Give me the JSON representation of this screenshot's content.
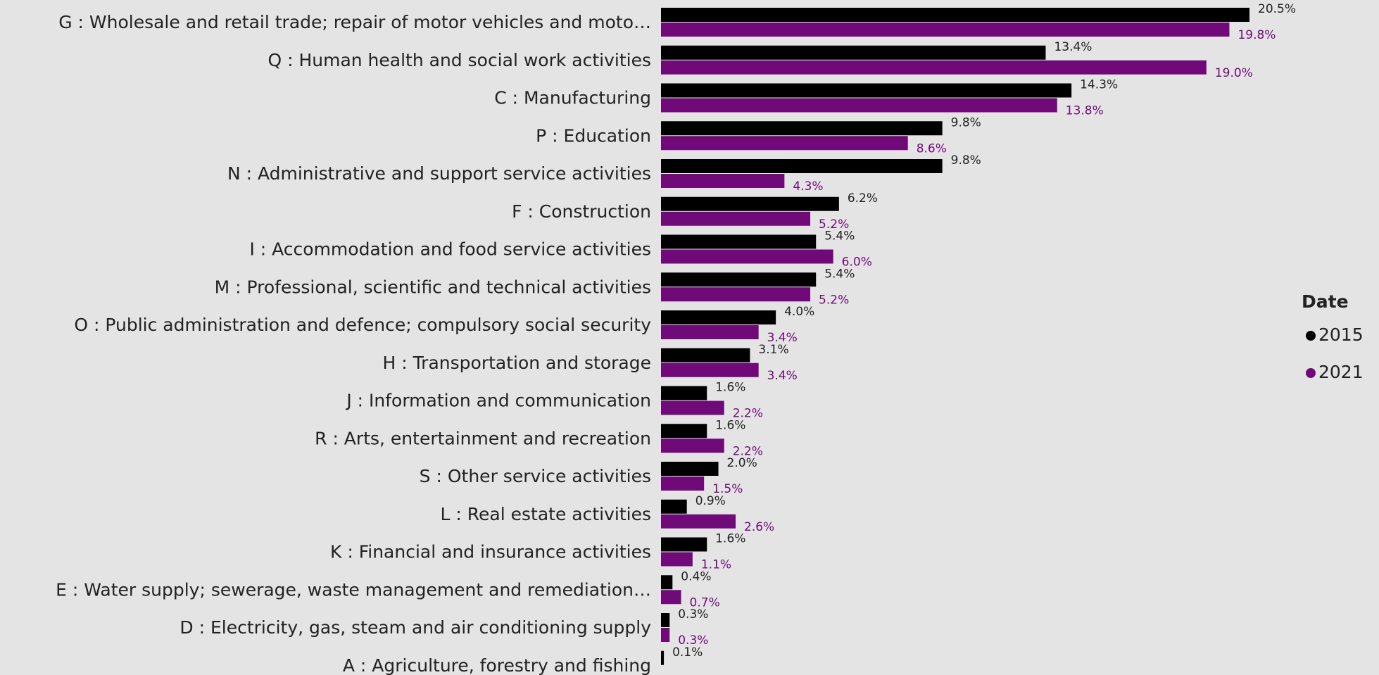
{
  "chart_data": {
    "type": "hbar",
    "categories": [
      "G : Wholesale and retail trade; repair of motor vehicles and moto…",
      "Q : Human health and social work activities",
      "C : Manufacturing",
      "P : Education",
      "N : Administrative and support service activities",
      "F : Construction",
      "I : Accommodation and food service activities",
      "M : Professional, scientific and technical activities",
      "O : Public administration and defence; compulsory social security",
      "H : Transportation and storage",
      "J : Information and communication",
      "R : Arts, entertainment and recreation",
      "S : Other service activities",
      "L : Real estate activities",
      "K : Financial and insurance activities",
      "E : Water supply; sewerage, waste management and remediation…",
      "D : Electricity, gas, steam and air conditioning supply",
      "A : Agriculture, forestry and fishing"
    ],
    "legend_title": "Date",
    "series": [
      {
        "name": "2015",
        "color": "#000000",
        "values": [
          20.5,
          13.4,
          14.3,
          9.8,
          9.8,
          6.2,
          5.4,
          5.4,
          4.0,
          3.1,
          1.6,
          1.6,
          2.0,
          0.9,
          1.6,
          0.4,
          0.3,
          0.1
        ],
        "value_labels": [
          "20.5%",
          "13.4%",
          "14.3%",
          "9.8%",
          "9.8%",
          "6.2%",
          "5.4%",
          "5.4%",
          "4.0%",
          "3.1%",
          "1.6%",
          "1.6%",
          "2.0%",
          "0.9%",
          "1.6%",
          "0.4%",
          "0.3%",
          "0.1%"
        ]
      },
      {
        "name": "2021",
        "color": "#6f0a78",
        "values": [
          19.8,
          19.0,
          13.8,
          8.6,
          4.3,
          5.2,
          6.0,
          5.2,
          3.4,
          3.4,
          2.2,
          2.2,
          1.5,
          2.6,
          1.1,
          0.7,
          0.3,
          null
        ],
        "value_labels": [
          "19.8%",
          "19.0%",
          "13.8%",
          "8.6%",
          "4.3%",
          "5.2%",
          "6.0%",
          "5.2%",
          "3.4%",
          "3.4%",
          "2.2%",
          "2.2%",
          "1.5%",
          "2.6%",
          "1.1%",
          "0.7%",
          "0.3%",
          null
        ]
      }
    ]
  }
}
